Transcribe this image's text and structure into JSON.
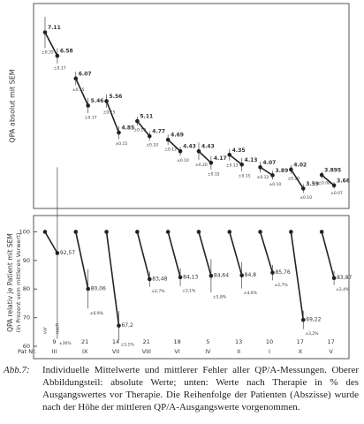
{
  "chart_data": [
    {
      "type": "line",
      "y_label": "QPA absolut mit SEM",
      "categories": [
        "III",
        "IX",
        "VII",
        "VIII",
        "VI",
        "IV",
        "II",
        "I",
        "X",
        "V"
      ],
      "ylim": [
        3.3,
        7.6
      ],
      "series": [
        {
          "color": "#222222",
          "values": [
            7.11,
            6.07,
            5.56,
            5.11,
            4.69,
            4.43,
            4.35,
            4.07,
            4.02,
            3.895
          ],
          "errors": [
            0.35,
            0.15,
            0.15,
            0.1,
            0.12,
            0.2,
            0.13,
            0.12,
            0.1,
            0.08
          ],
          "error_labels": [
            "±0.35",
            "±0.15",
            "±0.15",
            "±0.10",
            "±0.12",
            "±0.20",
            "±0.13",
            "±0.12",
            "±0.10",
            "±0.08"
          ]
        },
        {
          "color": "#222222",
          "values": [
            6.58,
            5.46,
            4.85,
            4.77,
            4.43,
            4.17,
            4.13,
            3.89,
            3.59,
            3.66
          ],
          "errors": [
            0.17,
            0.17,
            0.15,
            0.1,
            0.1,
            0.15,
            0.15,
            0.1,
            0.1,
            0.07
          ],
          "error_labels": [
            "±0.17",
            "±0.17",
            "±0.15",
            "±0.10",
            "±0.10",
            "±0.15",
            "±0.15",
            "±0.10",
            "±0.10",
            "±0.07"
          ]
        }
      ]
    },
    {
      "type": "line",
      "y_label": "QPA relativ je Patient mit SEM",
      "y_sublabel": "(in Prozent vom mittleren Vorwert)",
      "x_label": "Pat Nr.",
      "categories": [
        "III",
        "IX",
        "VII",
        "VIII",
        "VI",
        "IV",
        "II",
        "I",
        "X",
        "V"
      ],
      "counts": [
        9,
        21,
        14,
        21,
        18,
        5,
        13,
        10,
        17,
        17
      ],
      "annotations": [
        "vor",
        "nach"
      ],
      "ylim": [
        60,
        102
      ],
      "yticks": [
        60,
        70,
        80,
        90,
        100
      ],
      "series": [
        {
          "color": "#222222",
          "values": [
            100,
            100,
            100,
            100,
            100,
            100,
            100,
            100,
            100,
            100
          ]
        },
        {
          "color": "#222222",
          "values": [
            92.57,
            80.06,
            67.2,
            83.48,
            84.13,
            84.64,
            84.8,
            85.76,
            69.22,
            83.87
          ],
          "value_labels": [
            "92,57",
            "80,06",
            "67,2",
            "83,48",
            "84,13",
            "84,64",
            "84,8",
            "85,76",
            "69,22",
            "83,87"
          ],
          "errors": [
            30,
            6.9,
            5.1,
            2.7,
            3.1,
            5.8,
            4.6,
            2.7,
            3.2,
            2.4
          ],
          "error_labels": [
            "±30%",
            "±6,9%",
            "±5,1%",
            "±2,7%",
            "±3,1%",
            "±5,8%",
            "±4,6%",
            "±2,7%",
            "±3,2%",
            "±2,4%"
          ]
        }
      ]
    }
  ],
  "caption": {
    "label": "Abb.7:",
    "text": "Individuelle Mittelwerte und mittlerer Fehler aller QP/A-Messungen. Oberer Abbildungsteil: absolute Werte; unten: Werte nach Therapie in % des Ausgangswertes vor Therapie. Die Reihenfolge der Patienten (Abszisse) wurde nach der Höhe der mittleren QP/A-Ausgangswerte vorgenommen."
  }
}
